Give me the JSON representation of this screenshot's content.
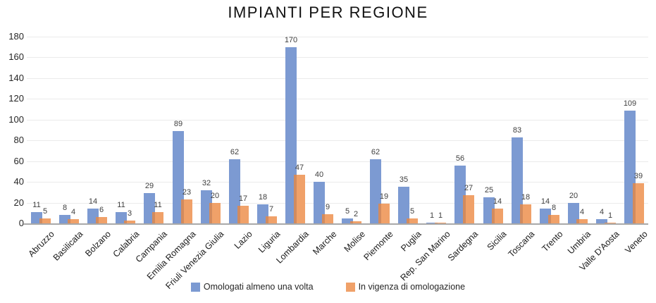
{
  "chart_data": {
    "type": "bar",
    "title": "IMPIANTI PER REGIONE",
    "categories": [
      "Abruzzo",
      "Basilicata",
      "Bolzano",
      "Calabria",
      "Campania",
      "Emilia Romagna",
      "Friuli Venezia Giulia",
      "Lazio",
      "Liguria",
      "Lombardia",
      "Marche",
      "Molise",
      "Piemonte",
      "Puglia",
      "Rep. San Marino",
      "Sardegna",
      "Sicilia",
      "Toscana",
      "Trento",
      "Umbria",
      "Valle D'Aosta",
      "Veneto"
    ],
    "series": [
      {
        "name": "Omologati almeno una volta",
        "color": "#7c9ad2",
        "values": [
          11,
          8,
          14,
          11,
          29,
          89,
          32,
          62,
          18,
          170,
          40,
          5,
          62,
          35,
          1,
          56,
          25,
          83,
          14,
          20,
          4,
          109
        ]
      },
      {
        "name": "In vigenza di omologazione",
        "color": "#f0a169",
        "overlap_color": "#d28b5e",
        "values": [
          5,
          4,
          6,
          3,
          11,
          23,
          20,
          17,
          7,
          47,
          9,
          2,
          19,
          5,
          1,
          27,
          14,
          18,
          8,
          4,
          1,
          39
        ]
      }
    ],
    "xlabel": "",
    "ylabel": "",
    "ylim": [
      0,
      180
    ],
    "ytick_step": 20,
    "yticks": [
      0,
      20,
      40,
      60,
      80,
      100,
      120,
      140,
      160,
      180
    ],
    "grid": true,
    "data_labels": true,
    "legend_position": "bottom",
    "colors": {
      "gridline": "#ebebeb",
      "axis_line": "#a9a9a9",
      "value_label": "#404040",
      "tick_label": "#262626",
      "title": "#111111"
    }
  }
}
